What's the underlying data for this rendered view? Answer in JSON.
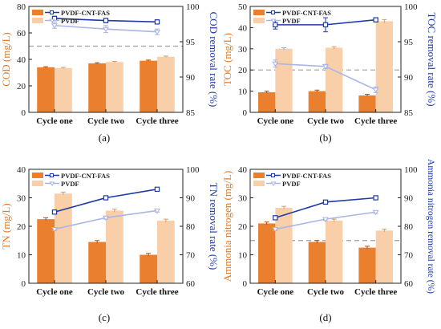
{
  "colors": {
    "bar_a": "#ea7f2e",
    "bar_b": "#f9cfaa",
    "line_a": "#1f3aa6",
    "line_b": "#aab4e6",
    "axis_left": "#e07a28",
    "axis_right": "#1f3aa6",
    "limit_line": "#9e9e9e",
    "frame": "#222222"
  },
  "chart_data": [
    {
      "type": "bar",
      "panel_label": "(a)",
      "categories": [
        "Cycle one",
        "Cycle two",
        "Cycle three"
      ],
      "ylabel": "COD (mg/L)",
      "y2label": "COD removal rate (%)",
      "ylim": [
        0,
        80
      ],
      "yticks": [
        0,
        20,
        40,
        60,
        80
      ],
      "y2lim": [
        85,
        100
      ],
      "y2ticks": [
        85,
        90,
        95,
        100
      ],
      "limit_line": 50,
      "series": [
        {
          "name": "PVDF-CNT-FAS",
          "values": [
            34,
            37,
            39
          ],
          "errors": [
            0.5,
            0.5,
            0.5
          ]
        },
        {
          "name": "PVDF",
          "values": [
            33.5,
            38,
            42
          ],
          "errors": [
            0.5,
            0.5,
            0.5
          ]
        }
      ],
      "rate_series": [
        {
          "name": "PVDF-CNT-FAS",
          "values": [
            98.3,
            98.0,
            97.8
          ],
          "errors": [
            0.3,
            0.3,
            0.3
          ]
        },
        {
          "name": "PVDF",
          "values": [
            97.3,
            96.8,
            96.4
          ],
          "errors": [
            0.4,
            0.5,
            0.4
          ]
        }
      ]
    },
    {
      "type": "bar",
      "panel_label": "(b)",
      "categories": [
        "Cycle one",
        "Cycle two",
        "Cycle three"
      ],
      "ylabel": "TOC (mg/L)",
      "y2label": "TOC removal rate (%)",
      "ylim": [
        0,
        50
      ],
      "yticks": [
        0,
        10,
        20,
        30,
        40,
        50
      ],
      "y2lim": [
        85,
        100
      ],
      "y2ticks": [
        85,
        90,
        95,
        100
      ],
      "limit_line": 20,
      "series": [
        {
          "name": "PVDF-CNT-FAS",
          "values": [
            9.5,
            10,
            8
          ],
          "errors": [
            0.5,
            0.5,
            0.5
          ]
        },
        {
          "name": "PVDF",
          "values": [
            30,
            30.5,
            43
          ],
          "errors": [
            0.5,
            0.5,
            0.8
          ]
        }
      ],
      "rate_series": [
        {
          "name": "PVDF-CNT-FAS",
          "values": [
            97.4,
            97.4,
            98.1
          ],
          "errors": [
            0.6,
            1.0,
            0.3
          ]
        },
        {
          "name": "PVDF",
          "values": [
            91.9,
            91.5,
            88.2
          ],
          "errors": [
            0.5,
            0.3,
            0.4
          ]
        }
      ]
    },
    {
      "type": "bar",
      "panel_label": "(c)",
      "categories": [
        "Cycle one",
        "Cycle two",
        "Cycle three"
      ],
      "ylabel": "TN (mg/L)",
      "y2label": "TN removal rate (%)",
      "ylim": [
        0,
        40
      ],
      "yticks": [
        0,
        10,
        20,
        30,
        40
      ],
      "y2lim": [
        60,
        100
      ],
      "y2ticks": [
        60,
        70,
        80,
        90,
        100
      ],
      "limit_line": null,
      "series": [
        {
          "name": "PVDF-CNT-FAS",
          "values": [
            22.5,
            14.5,
            10
          ],
          "errors": [
            0.5,
            0.5,
            0.5
          ]
        },
        {
          "name": "PVDF",
          "values": [
            31.5,
            25.5,
            22
          ],
          "errors": [
            0.5,
            0.5,
            0.5
          ]
        }
      ],
      "rate_series": [
        {
          "name": "PVDF-CNT-FAS",
          "values": [
            85,
            90,
            93
          ],
          "errors": [
            0.5,
            0.4,
            0.4
          ]
        },
        {
          "name": "PVDF",
          "values": [
            79,
            83,
            85.5
          ],
          "errors": [
            0.5,
            0.5,
            0.5
          ]
        }
      ]
    },
    {
      "type": "bar",
      "panel_label": "(d)",
      "categories": [
        "Cycle one",
        "Cycle two",
        "Cycle three"
      ],
      "ylabel": "Ammonia nitrogen (mg/L)",
      "y2label": "Ammonia nitrogen removal rate (%)",
      "ylim": [
        0,
        40
      ],
      "yticks": [
        0,
        10,
        20,
        30,
        40
      ],
      "y2lim": [
        60,
        100
      ],
      "y2ticks": [
        60,
        70,
        80,
        90,
        100
      ],
      "limit_line": 15,
      "series": [
        {
          "name": "PVDF-CNT-FAS",
          "values": [
            21,
            14.5,
            12.5
          ],
          "errors": [
            0.5,
            0.5,
            0.5
          ]
        },
        {
          "name": "PVDF",
          "values": [
            26.5,
            22,
            18.5
          ],
          "errors": [
            0.5,
            0.5,
            0.5
          ]
        }
      ],
      "rate_series": [
        {
          "name": "PVDF-CNT-FAS",
          "values": [
            83,
            88.5,
            90
          ],
          "errors": [
            0.5,
            0.4,
            0.4
          ]
        },
        {
          "name": "PVDF",
          "values": [
            79,
            82.5,
            85
          ],
          "errors": [
            0.5,
            0.5,
            0.5
          ]
        }
      ]
    }
  ]
}
